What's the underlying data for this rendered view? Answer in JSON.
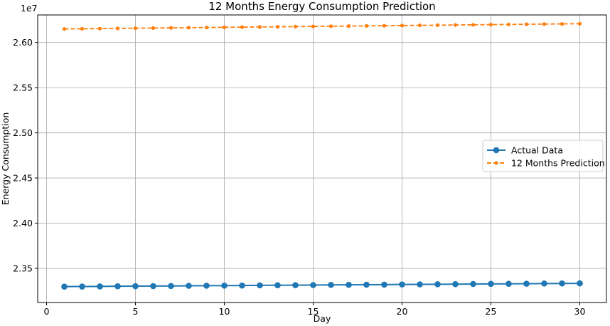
{
  "chart_data": {
    "type": "line",
    "title": "12 Months Energy Consumption Prediction",
    "xlabel": "Day",
    "ylabel": "Energy Consumption",
    "y_multiplier": "1e7",
    "xlim": [
      -0.5,
      31.5
    ],
    "ylim": [
      2.3122,
      2.6305
    ],
    "x_ticks": [
      0,
      5,
      10,
      15,
      20,
      25,
      30
    ],
    "y_ticks": [
      2.35,
      2.4,
      2.45,
      2.5,
      2.55,
      2.6
    ],
    "y_tick_labels": [
      "2.35",
      "2.40",
      "2.45",
      "2.50",
      "2.55",
      "2.60"
    ],
    "grid": true,
    "legend_position": "center-right",
    "x": [
      1,
      2,
      3,
      4,
      5,
      6,
      7,
      8,
      9,
      10,
      11,
      12,
      13,
      14,
      15,
      16,
      17,
      18,
      19,
      20,
      21,
      22,
      23,
      24,
      25,
      26,
      27,
      28,
      29,
      30
    ],
    "series": [
      {
        "name": "Actual Data",
        "color": "#1f77b4",
        "line_style": "solid",
        "marker": "circle",
        "values": [
          2.3298,
          2.3299,
          2.33,
          2.3302,
          2.3303,
          2.3304,
          2.3305,
          2.3307,
          2.3308,
          2.3309,
          2.331,
          2.3312,
          2.3313,
          2.3314,
          2.3315,
          2.3317,
          2.3318,
          2.3319,
          2.332,
          2.3322,
          2.3323,
          2.3324,
          2.3325,
          2.3327,
          2.3328,
          2.3329,
          2.333,
          2.3332,
          2.3333,
          2.3334
        ]
      },
      {
        "name": "12 Months Prediction",
        "color": "#ff7f0e",
        "line_style": "dashed",
        "marker": "circle-small",
        "values": [
          2.615,
          2.6152,
          2.6154,
          2.6156,
          2.6158,
          2.616,
          2.6162,
          2.6164,
          2.6166,
          2.6168,
          2.617,
          2.6172,
          2.6174,
          2.6176,
          2.6178,
          2.618,
          2.6182,
          2.6184,
          2.6186,
          2.6188,
          2.619,
          2.6192,
          2.6194,
          2.6196,
          2.6198,
          2.62,
          2.6202,
          2.6204,
          2.6206,
          2.6208
        ]
      }
    ]
  }
}
